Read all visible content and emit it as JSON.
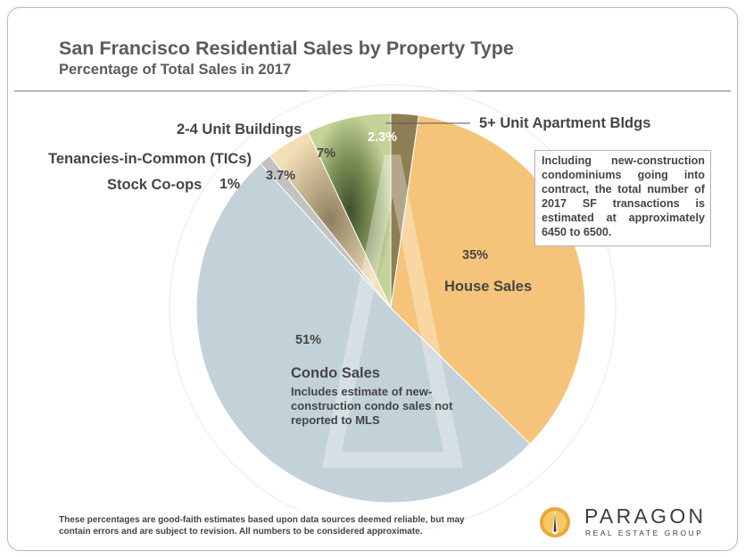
{
  "title": "San Francisco Residential Sales by Property Type",
  "subtitle": "Percentage of Total Sales in 2017",
  "note": "Including new-construction condominiums going into contract, the total number of 2017 SF transactions is estimated at approximately 6450 to 6500.",
  "condo_note": "Includes estimate of new-construction condo sales not reported to MLS",
  "footer": "These percentages are good-faith estimates based upon data sources deemed reliable, but may contain errors and are subject to revision. All numbers to be considered approximate.",
  "logo": {
    "name": "PARAGON",
    "tagline": "REAL ESTATE GROUP"
  },
  "chart_data": {
    "type": "pie",
    "title": "San Francisco Residential Sales by Property Type",
    "subtitle": "Percentage of Total Sales in 2017",
    "slices": [
      {
        "label": "5+ Unit Apartment Bldgs",
        "value": 2.3,
        "display": "2.3%",
        "color": "#8e7e54"
      },
      {
        "label": "House Sales",
        "value": 35,
        "display": "35%",
        "color": "#f5c47a"
      },
      {
        "label": "Condo Sales",
        "value": 51,
        "display": "51%",
        "color": "#c3d2d8"
      },
      {
        "label": "Stock Co-ops",
        "value": 1,
        "display": "1%",
        "color": "#c2c2c2"
      },
      {
        "label": "Tenancies-in-Common (TICs)",
        "value": 3.7,
        "display": "3.7%",
        "color": "#ecd8ad"
      },
      {
        "label": "2-4 Unit Buildings",
        "value": 7,
        "display": "7%",
        "color": "#b5c58c"
      }
    ]
  }
}
